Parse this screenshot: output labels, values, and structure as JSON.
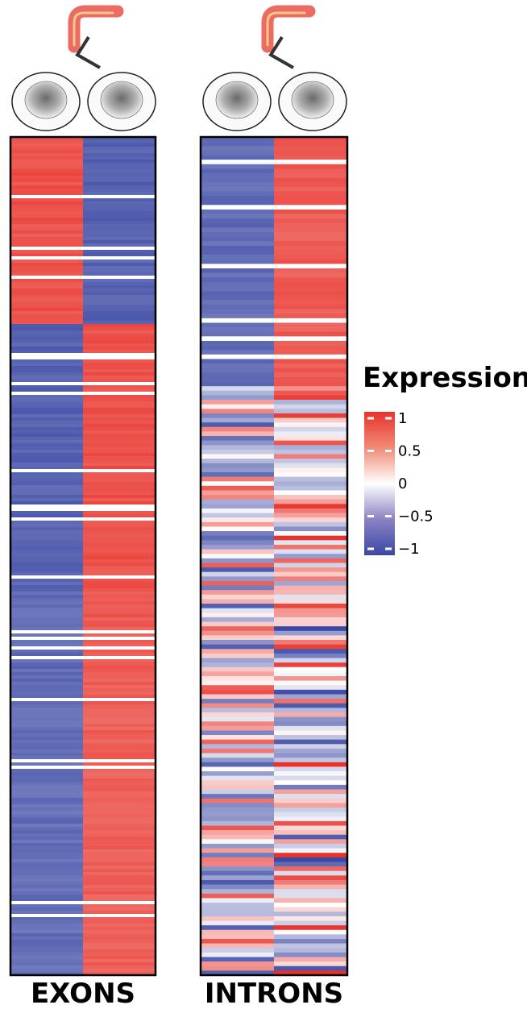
{
  "chart_data": {
    "type": "heatmap",
    "color_scale": {
      "domain": [
        -1,
        0,
        1
      ],
      "colors": [
        "#3a47a3",
        "#ffffff",
        "#e8332b"
      ]
    },
    "legend": {
      "title": "Expression",
      "ticks": [
        "1",
        "0.5",
        "0",
        "−0.5",
        "−1"
      ],
      "tick_values": [
        1,
        0.5,
        0,
        -0.5,
        -1
      ]
    },
    "panels": [
      {
        "label": "EXONS",
        "columns": 2,
        "segments": [
          {
            "rows": 58,
            "values": [
              0.85,
              -0.85
            ]
          },
          {
            "rows": 12,
            "values": [
              -0.85,
              0.85
            ]
          },
          {
            "rows": 70,
            "values": [
              -0.85,
              0.85
            ]
          },
          {
            "rows": 30,
            "values": [
              -0.8,
              0.8
            ]
          },
          {
            "rows": 90,
            "values": [
              -0.78,
              0.78
            ]
          }
        ]
      },
      {
        "label": "INTRONS",
        "columns": 2,
        "segments": [
          {
            "rows": 55,
            "values": [
              -0.8,
              0.8
            ]
          },
          {
            "rows": 130,
            "values": [
              0.0,
              0.0
            ],
            "mixed": true
          }
        ]
      }
    ]
  }
}
